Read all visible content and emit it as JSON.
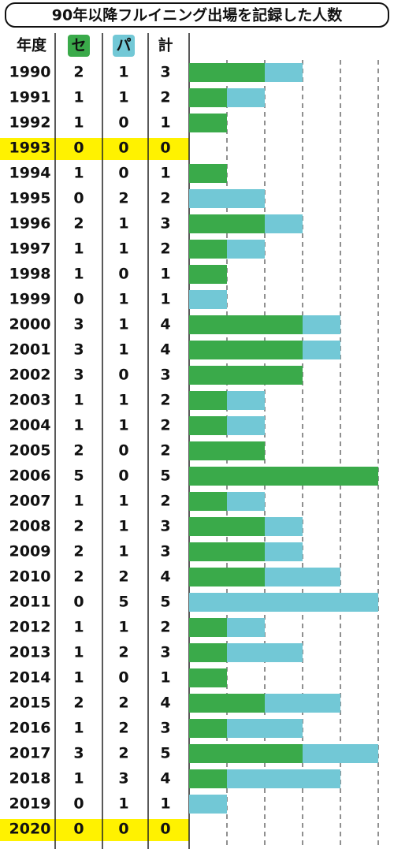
{
  "chart_data": {
    "type": "bar",
    "title": "90年以降フルイニング出場を記録した人数",
    "category_label": "年度",
    "total_label": "計",
    "categories": [
      "1990",
      "1991",
      "1992",
      "1993",
      "1994",
      "1995",
      "1996",
      "1997",
      "1998",
      "1999",
      "2000",
      "2001",
      "2002",
      "2003",
      "2004",
      "2005",
      "2006",
      "2007",
      "2008",
      "2009",
      "2010",
      "2011",
      "2012",
      "2013",
      "2014",
      "2015",
      "2016",
      "2017",
      "2018",
      "2019",
      "2020"
    ],
    "series": [
      {
        "name": "セ",
        "color": "#3aaa4a",
        "values": [
          2,
          1,
          1,
          0,
          1,
          0,
          2,
          1,
          1,
          0,
          3,
          3,
          3,
          1,
          1,
          2,
          5,
          1,
          2,
          2,
          2,
          0,
          1,
          1,
          1,
          2,
          1,
          3,
          1,
          0,
          0
        ]
      },
      {
        "name": "パ",
        "color": "#72c8d6",
        "values": [
          1,
          1,
          0,
          0,
          0,
          2,
          1,
          1,
          0,
          1,
          1,
          1,
          0,
          1,
          1,
          0,
          0,
          1,
          1,
          1,
          2,
          5,
          1,
          2,
          0,
          2,
          2,
          2,
          3,
          1,
          0
        ]
      }
    ],
    "totals": [
      3,
      2,
      1,
      0,
      1,
      2,
      3,
      2,
      1,
      1,
      4,
      4,
      3,
      2,
      2,
      2,
      5,
      2,
      3,
      3,
      4,
      5,
      2,
      3,
      1,
      4,
      3,
      5,
      4,
      1,
      0
    ],
    "highlight_color": "#fff200",
    "xlim": [
      0,
      5
    ],
    "xticks": [
      1,
      2,
      3,
      4,
      5
    ],
    "grid": true
  }
}
